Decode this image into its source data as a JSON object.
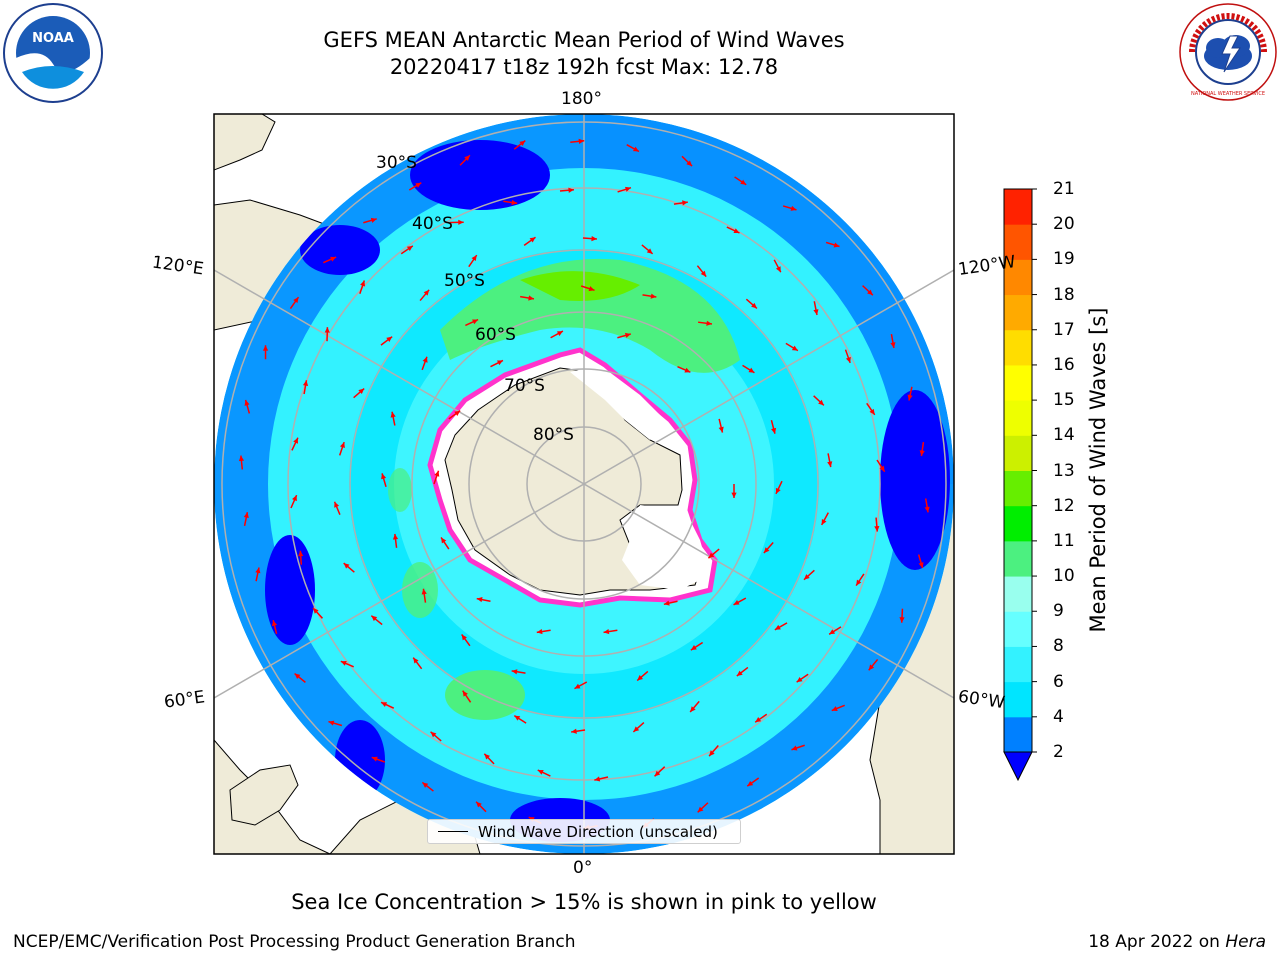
{
  "header": {
    "title_line1": "GEFS MEAN Antarctic Mean Period of Wind Waves",
    "title_line2": "20220417 t18z 192h fcst   Max: 12.78"
  },
  "map": {
    "projection": "south-polar-stereographic",
    "lon_labels": {
      "top": "180°",
      "bottom": "0°",
      "left_upper": "120°E",
      "left_lower": "60°E",
      "right_upper": "120°W",
      "right_lower": "60°W"
    },
    "lat_labels": [
      "30°S",
      "40°S",
      "50°S",
      "60°S",
      "70°S",
      "80°S"
    ],
    "colors": {
      "land": "#efebd8",
      "ice_edge": "#ff33cc",
      "arrow": "#ff0000",
      "graticule": "#b0b0b0"
    }
  },
  "legend": {
    "label": "Wind Wave Direction (unscaled)"
  },
  "colorbar": {
    "label": "Mean Period of Wind Waves [s]",
    "ticks": [
      "21",
      "20",
      "19",
      "18",
      "17",
      "16",
      "15",
      "14",
      "13",
      "12",
      "11",
      "10",
      "9",
      "8",
      "6",
      "4",
      "2"
    ],
    "bands": [
      {
        "from": 2,
        "to": 4,
        "color": "#0080ff"
      },
      {
        "from": 4,
        "to": 6,
        "color": "#00e5ff"
      },
      {
        "from": 6,
        "to": 8,
        "color": "#33f2ff"
      },
      {
        "from": 8,
        "to": 9,
        "color": "#66ffff"
      },
      {
        "from": 9,
        "to": 10,
        "color": "#99ffee"
      },
      {
        "from": 10,
        "to": 11,
        "color": "#4cf080"
      },
      {
        "from": 11,
        "to": 12,
        "color": "#00ee00"
      },
      {
        "from": 12,
        "to": 13,
        "color": "#66ee00"
      },
      {
        "from": 13,
        "to": 14,
        "color": "#ccf000"
      },
      {
        "from": 14,
        "to": 15,
        "color": "#eeff00"
      },
      {
        "from": 15,
        "to": 16,
        "color": "#ffff00"
      },
      {
        "from": 16,
        "to": 17,
        "color": "#ffdd00"
      },
      {
        "from": 17,
        "to": 18,
        "color": "#ffaa00"
      },
      {
        "from": 18,
        "to": 19,
        "color": "#ff8800"
      },
      {
        "from": 19,
        "to": 20,
        "color": "#ff5500"
      },
      {
        "from": 20,
        "to": 21,
        "color": "#ff2200"
      }
    ],
    "under_color": "#0000ff",
    "top_color": "#ff0000"
  },
  "caption": "Sea Ice Concentration > 15% is shown in pink to yellow",
  "footer": {
    "left": "NCEP/EMC/Verification Post Processing Product Generation Branch",
    "right_prefix": "18 Apr 2022 on",
    "right_machine": "Hera"
  },
  "logos": {
    "noaa_text": "NOAA",
    "nws_text": "NATIONAL WEATHER SERVICE"
  }
}
